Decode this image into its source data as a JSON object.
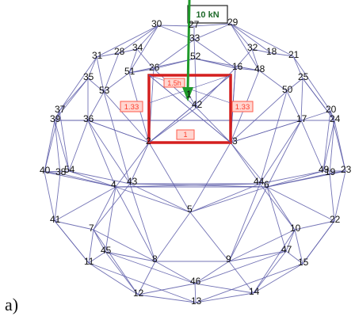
{
  "figure": {
    "caption": "a)",
    "load_label": "10 kN",
    "colors": {
      "mesh": "#5a5aa8",
      "panel": "#d41f1f",
      "panel_label": "#ff5a4a",
      "arrow": "#1e9a2a",
      "text": "#111111"
    },
    "panel_labels": {
      "top": "1.5h",
      "left": "1.33",
      "right": "1.33",
      "bottom": "1"
    }
  },
  "nodes": [
    {
      "id": "1"
    },
    {
      "id": "2"
    },
    {
      "id": "3"
    },
    {
      "id": "4"
    },
    {
      "id": "5"
    },
    {
      "id": "6"
    },
    {
      "id": "7"
    },
    {
      "id": "8"
    },
    {
      "id": "9"
    },
    {
      "id": "10"
    },
    {
      "id": "11"
    },
    {
      "id": "12"
    },
    {
      "id": "13"
    },
    {
      "id": "14"
    },
    {
      "id": "15"
    },
    {
      "id": "16"
    },
    {
      "id": "17"
    },
    {
      "id": "18"
    },
    {
      "id": "19"
    },
    {
      "id": "20"
    },
    {
      "id": "21"
    },
    {
      "id": "22"
    },
    {
      "id": "23"
    },
    {
      "id": "24"
    },
    {
      "id": "25"
    },
    {
      "id": "26"
    },
    {
      "id": "27"
    },
    {
      "id": "28"
    },
    {
      "id": "29"
    },
    {
      "id": "30"
    },
    {
      "id": "31"
    },
    {
      "id": "32"
    },
    {
      "id": "33"
    },
    {
      "id": "34"
    },
    {
      "id": "35"
    },
    {
      "id": "36"
    },
    {
      "id": "37"
    },
    {
      "id": "38"
    },
    {
      "id": "39"
    },
    {
      "id": "40"
    },
    {
      "id": "41"
    },
    {
      "id": "42"
    },
    {
      "id": "43"
    },
    {
      "id": "44"
    },
    {
      "id": "45"
    },
    {
      "id": "46"
    },
    {
      "id": "47"
    },
    {
      "id": "48"
    },
    {
      "id": "49"
    },
    {
      "id": "50"
    },
    {
      "id": "51"
    },
    {
      "id": "52"
    },
    {
      "id": "53"
    },
    {
      "id": "54"
    }
  ]
}
